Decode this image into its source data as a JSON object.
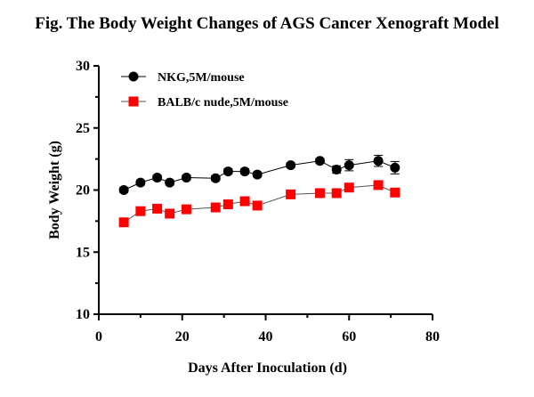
{
  "chart_data": {
    "type": "line",
    "title": "Fig. The Body Weight Changes of AGS Cancer Xenograft Model",
    "xlabel": "Days After Inoculation (d)",
    "ylabel": "Body Weight (g)",
    "xlim": [
      0,
      80
    ],
    "ylim": [
      10,
      30
    ],
    "xticks": [
      0,
      20,
      40,
      60,
      80
    ],
    "yticks": [
      10,
      15,
      20,
      25,
      30
    ],
    "grid": false,
    "legend_position": "top-left",
    "series": [
      {
        "name": "NKG,5M/mouse",
        "color": "#000000",
        "marker": "circle",
        "x": [
          6,
          10,
          14,
          17,
          21,
          28,
          31,
          35,
          38,
          46,
          53,
          57,
          60,
          67,
          71
        ],
        "y": [
          20.0,
          20.6,
          21.0,
          20.6,
          21.0,
          20.95,
          21.5,
          21.5,
          21.25,
          22.0,
          22.35,
          21.65,
          22.0,
          22.35,
          21.8
        ],
        "error": [
          0.2,
          0.2,
          0.2,
          0.2,
          0.2,
          0.2,
          0.2,
          0.2,
          0.2,
          0.2,
          0.2,
          0.3,
          0.45,
          0.45,
          0.5
        ]
      },
      {
        "name": "BALB/c nude,5M/mouse",
        "color": "#ff0000",
        "marker": "square",
        "x": [
          6,
          10,
          14,
          17,
          21,
          28,
          31,
          35,
          38,
          46,
          53,
          57,
          60,
          67,
          71
        ],
        "y": [
          17.4,
          18.3,
          18.5,
          18.1,
          18.45,
          18.6,
          18.85,
          19.1,
          18.75,
          19.65,
          19.75,
          19.75,
          20.2,
          20.4,
          19.8
        ],
        "error": [
          0.15,
          0.15,
          0.15,
          0.15,
          0.15,
          0.15,
          0.15,
          0.15,
          0.15,
          0.15,
          0.15,
          0.15,
          0.15,
          0.15,
          0.15
        ]
      }
    ]
  }
}
